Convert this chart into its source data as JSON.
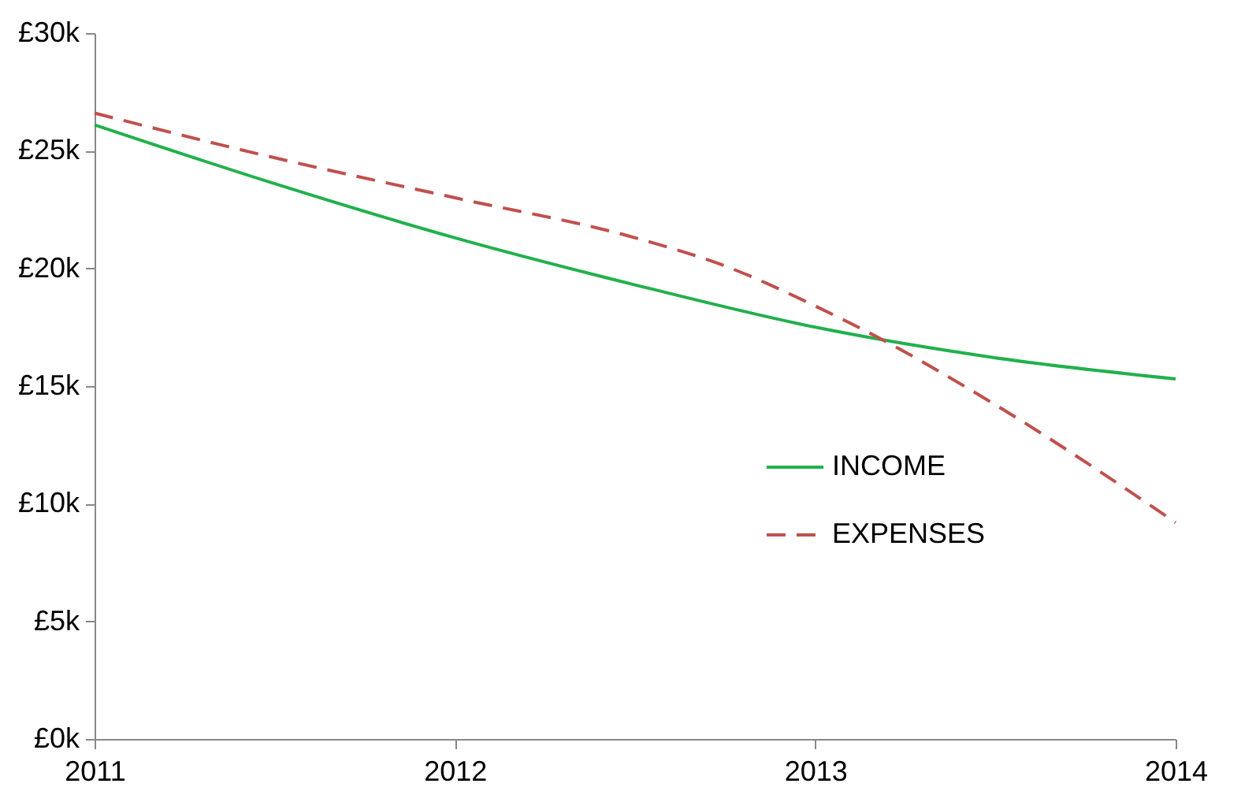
{
  "chart_data": {
    "type": "line",
    "x": [
      2011,
      2011.5,
      2012,
      2012.5,
      2013,
      2013.5,
      2014
    ],
    "series": [
      {
        "name": "INCOME",
        "color": "#22b04c",
        "line_style": "solid",
        "values": [
          26.1,
          23.6,
          21.3,
          19.3,
          17.5,
          16.2,
          15.3
        ]
      },
      {
        "name": "EXPENSES",
        "color": "#c0504d",
        "line_style": "dashed",
        "x": [
          2011,
          2011.5,
          2012,
          2012.5,
          2012.75,
          2013,
          2013.17,
          2013.5,
          2014
        ],
        "values": [
          26.6,
          24.7,
          23.0,
          21.3,
          20.1,
          18.4,
          17.1,
          14.2,
          9.2
        ]
      }
    ],
    "xlim": [
      2011,
      2014
    ],
    "xticks": [
      2011,
      2012,
      2013,
      2014
    ],
    "ylim": [
      0,
      30
    ],
    "yticks": [
      {
        "value": 0,
        "label": "£0k"
      },
      {
        "value": 5,
        "label": "£5k"
      },
      {
        "value": 10,
        "label": "£10k"
      },
      {
        "value": 15,
        "label": "£15k"
      },
      {
        "value": 20,
        "label": "£20k"
      },
      {
        "value": 25,
        "label": "£25k"
      },
      {
        "value": 30,
        "label": "£30k"
      }
    ],
    "grid": false,
    "legend": "bottom right",
    "marker": "none"
  }
}
